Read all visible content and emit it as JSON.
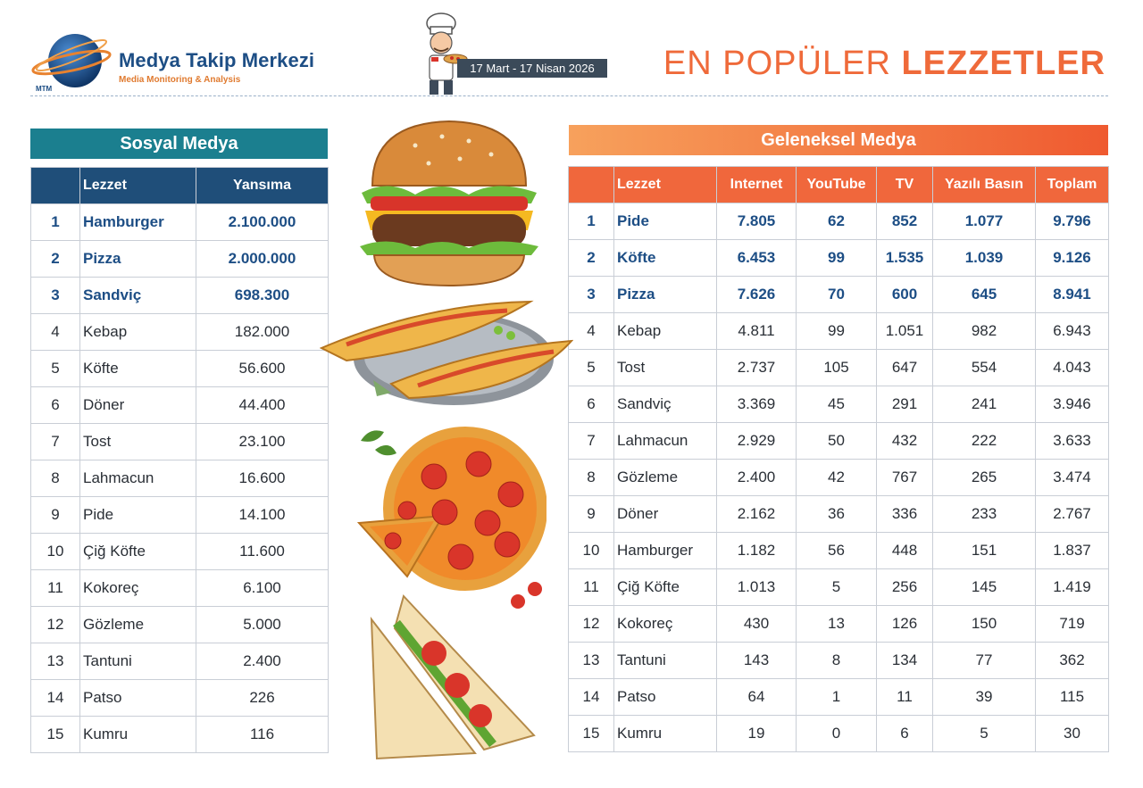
{
  "header": {
    "logo_abbr": "MTM",
    "brand_title": "Medya Takip Merkezi",
    "brand_subtitle": "Media Monitoring & Analysis",
    "date_range": "17 Mart - 17 Nisan 2026",
    "title_light": "EN POPÜLER",
    "title_bold": "LEZZETLER"
  },
  "social": {
    "heading": "Sosyal Medya",
    "columns": [
      "Lezzet",
      "Yansıma"
    ],
    "rows": [
      [
        "1",
        "Hamburger",
        "2.100.000"
      ],
      [
        "2",
        "Pizza",
        "2.000.000"
      ],
      [
        "3",
        "Sandviç",
        "698.300"
      ],
      [
        "4",
        "Kebap",
        "182.000"
      ],
      [
        "5",
        "Köfte",
        "56.600"
      ],
      [
        "6",
        "Döner",
        "44.400"
      ],
      [
        "7",
        "Tost",
        "23.100"
      ],
      [
        "8",
        "Lahmacun",
        "16.600"
      ],
      [
        "9",
        "Pide",
        "14.100"
      ],
      [
        "10",
        "Çiğ Köfte",
        "11.600"
      ],
      [
        "11",
        "Kokoreç",
        "6.100"
      ],
      [
        "12",
        "Gözleme",
        "5.000"
      ],
      [
        "13",
        "Tantuni",
        "2.400"
      ],
      [
        "14",
        "Patso",
        "226"
      ],
      [
        "15",
        "Kumru",
        "116"
      ]
    ]
  },
  "traditional": {
    "heading": "Geleneksel Medya",
    "columns": [
      "Lezzet",
      "Internet",
      "YouTube",
      "TV",
      "Yazılı Basın",
      "Toplam"
    ],
    "rows": [
      [
        "1",
        "Pide",
        "7.805",
        "62",
        "852",
        "1.077",
        "9.796"
      ],
      [
        "2",
        "Köfte",
        "6.453",
        "99",
        "1.535",
        "1.039",
        "9.126"
      ],
      [
        "3",
        "Pizza",
        "7.626",
        "70",
        "600",
        "645",
        "8.941"
      ],
      [
        "4",
        "Kebap",
        "4.811",
        "99",
        "1.051",
        "982",
        "6.943"
      ],
      [
        "5",
        "Tost",
        "2.737",
        "105",
        "647",
        "554",
        "4.043"
      ],
      [
        "6",
        "Sandviç",
        "3.369",
        "45",
        "291",
        "241",
        "3.946"
      ],
      [
        "7",
        "Lahmacun",
        "2.929",
        "50",
        "432",
        "222",
        "3.633"
      ],
      [
        "8",
        "Gözleme",
        "2.400",
        "42",
        "767",
        "265",
        "3.474"
      ],
      [
        "9",
        "Döner",
        "2.162",
        "36",
        "336",
        "233",
        "2.767"
      ],
      [
        "10",
        "Hamburger",
        "1.182",
        "56",
        "448",
        "151",
        "1.837"
      ],
      [
        "11",
        "Çiğ Köfte",
        "1.013",
        "5",
        "256",
        "145",
        "1.419"
      ],
      [
        "12",
        "Kokoreç",
        "430",
        "13",
        "126",
        "150",
        "719"
      ],
      [
        "13",
        "Tantuni",
        "143",
        "8",
        "134",
        "77",
        "362"
      ],
      [
        "14",
        "Patso",
        "64",
        "1",
        "11",
        "39",
        "115"
      ],
      [
        "15",
        "Kumru",
        "19",
        "0",
        "6",
        "5",
        "30"
      ]
    ]
  },
  "colors": {
    "brand_blue": "#1d4e85",
    "social_bar": "#1b7f8f",
    "social_header": "#1f4e79",
    "traditional_header": "#f0673c",
    "title_orange": "#ef6a3a"
  },
  "illustrations": [
    "hamburger-illustration",
    "pide-illustration",
    "pizza-illustration",
    "sandwich-illustration",
    "chef-illustration"
  ]
}
